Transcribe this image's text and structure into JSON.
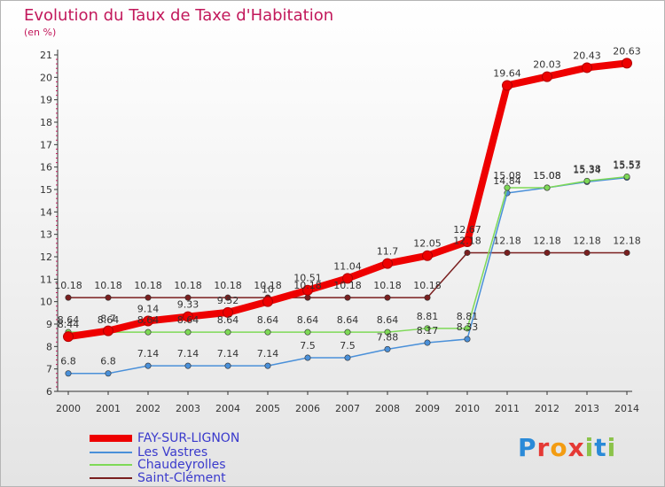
{
  "header": {
    "title": "Evolution du Taux de Taxe d'Habitation",
    "subtitle": "(en %)"
  },
  "logo": {
    "text": "Proxiti",
    "letters": [
      "P",
      "r",
      "o",
      "x",
      "i",
      "t",
      "i"
    ],
    "colors": [
      "#2a8ad8",
      "#e53935",
      "#f39c12",
      "#e53935",
      "#8bc34a",
      "#2a8ad8",
      "#8bc34a"
    ]
  },
  "chart_data": {
    "type": "line",
    "categories": [
      "2000",
      "2001",
      "2002",
      "2003",
      "2004",
      "2005",
      "2006",
      "2007",
      "2008",
      "2009",
      "2010",
      "2011",
      "2012",
      "2013",
      "2014"
    ],
    "ylim": [
      6,
      21
    ],
    "yticks": [
      6,
      7,
      8,
      9,
      10,
      11,
      12,
      13,
      14,
      15,
      16,
      17,
      18,
      19,
      20,
      21
    ],
    "grid": false,
    "legend_position": "bottom-left",
    "series": [
      {
        "name": "FAY-SUR-LIGNON",
        "color": "#ee0000",
        "values": [
          8.44,
          8.7,
          9.14,
          9.33,
          9.52,
          10,
          10.51,
          11.04,
          11.7,
          12.05,
          12.67,
          19.64,
          20.03,
          20.43,
          20.63
        ],
        "labels": [
          "8.44",
          "8.7",
          "9.14",
          "9.33",
          "9.52",
          "10",
          "10.51",
          "11.04",
          "11.7",
          "12.05",
          "12.67",
          "19.64",
          "20.03",
          "20.43",
          "20.63"
        ]
      },
      {
        "name": "Les Vastres",
        "color": "#4a90d9",
        "values": [
          6.8,
          6.8,
          7.14,
          7.14,
          7.14,
          7.14,
          7.5,
          7.5,
          7.88,
          8.17,
          8.33,
          14.84,
          15.08,
          15.34,
          15.53
        ],
        "labels": [
          "6.8",
          "6.8",
          "7.14",
          "7.14",
          "7.14",
          "7.14",
          "7.5",
          "7.5",
          "7.88",
          "8.17",
          "8.33",
          "14.84",
          "15.08",
          "15.34",
          "15.53"
        ]
      },
      {
        "name": "Chaudeyrolles",
        "color": "#7ed957",
        "values": [
          8.64,
          8.64,
          8.64,
          8.64,
          8.64,
          8.64,
          8.64,
          8.64,
          8.64,
          8.81,
          8.81,
          15.08,
          15.08,
          15.38,
          15.57
        ],
        "labels": [
          "8.64",
          "8.64",
          "8.64",
          "8.64",
          "8.64",
          "8.64",
          "8.64",
          "8.64",
          "8.64",
          "8.81",
          "8.81",
          "15.08",
          "15.08",
          "15.38",
          "15.57"
        ]
      },
      {
        "name": "Saint-Clément",
        "color": "#7a1f1f",
        "values": [
          10.18,
          10.18,
          10.18,
          10.18,
          10.18,
          10.18,
          10.18,
          10.18,
          10.18,
          10.18,
          12.18,
          12.18,
          12.18,
          12.18,
          12.18
        ],
        "labels": [
          "10.18",
          "10.18",
          "10.18",
          "10.18",
          "10.18",
          "10.18",
          "10.18",
          "10.18",
          "10.18",
          "10.18",
          "12.18",
          "12.18",
          "12.18",
          "12.18",
          "12.18"
        ]
      }
    ]
  }
}
